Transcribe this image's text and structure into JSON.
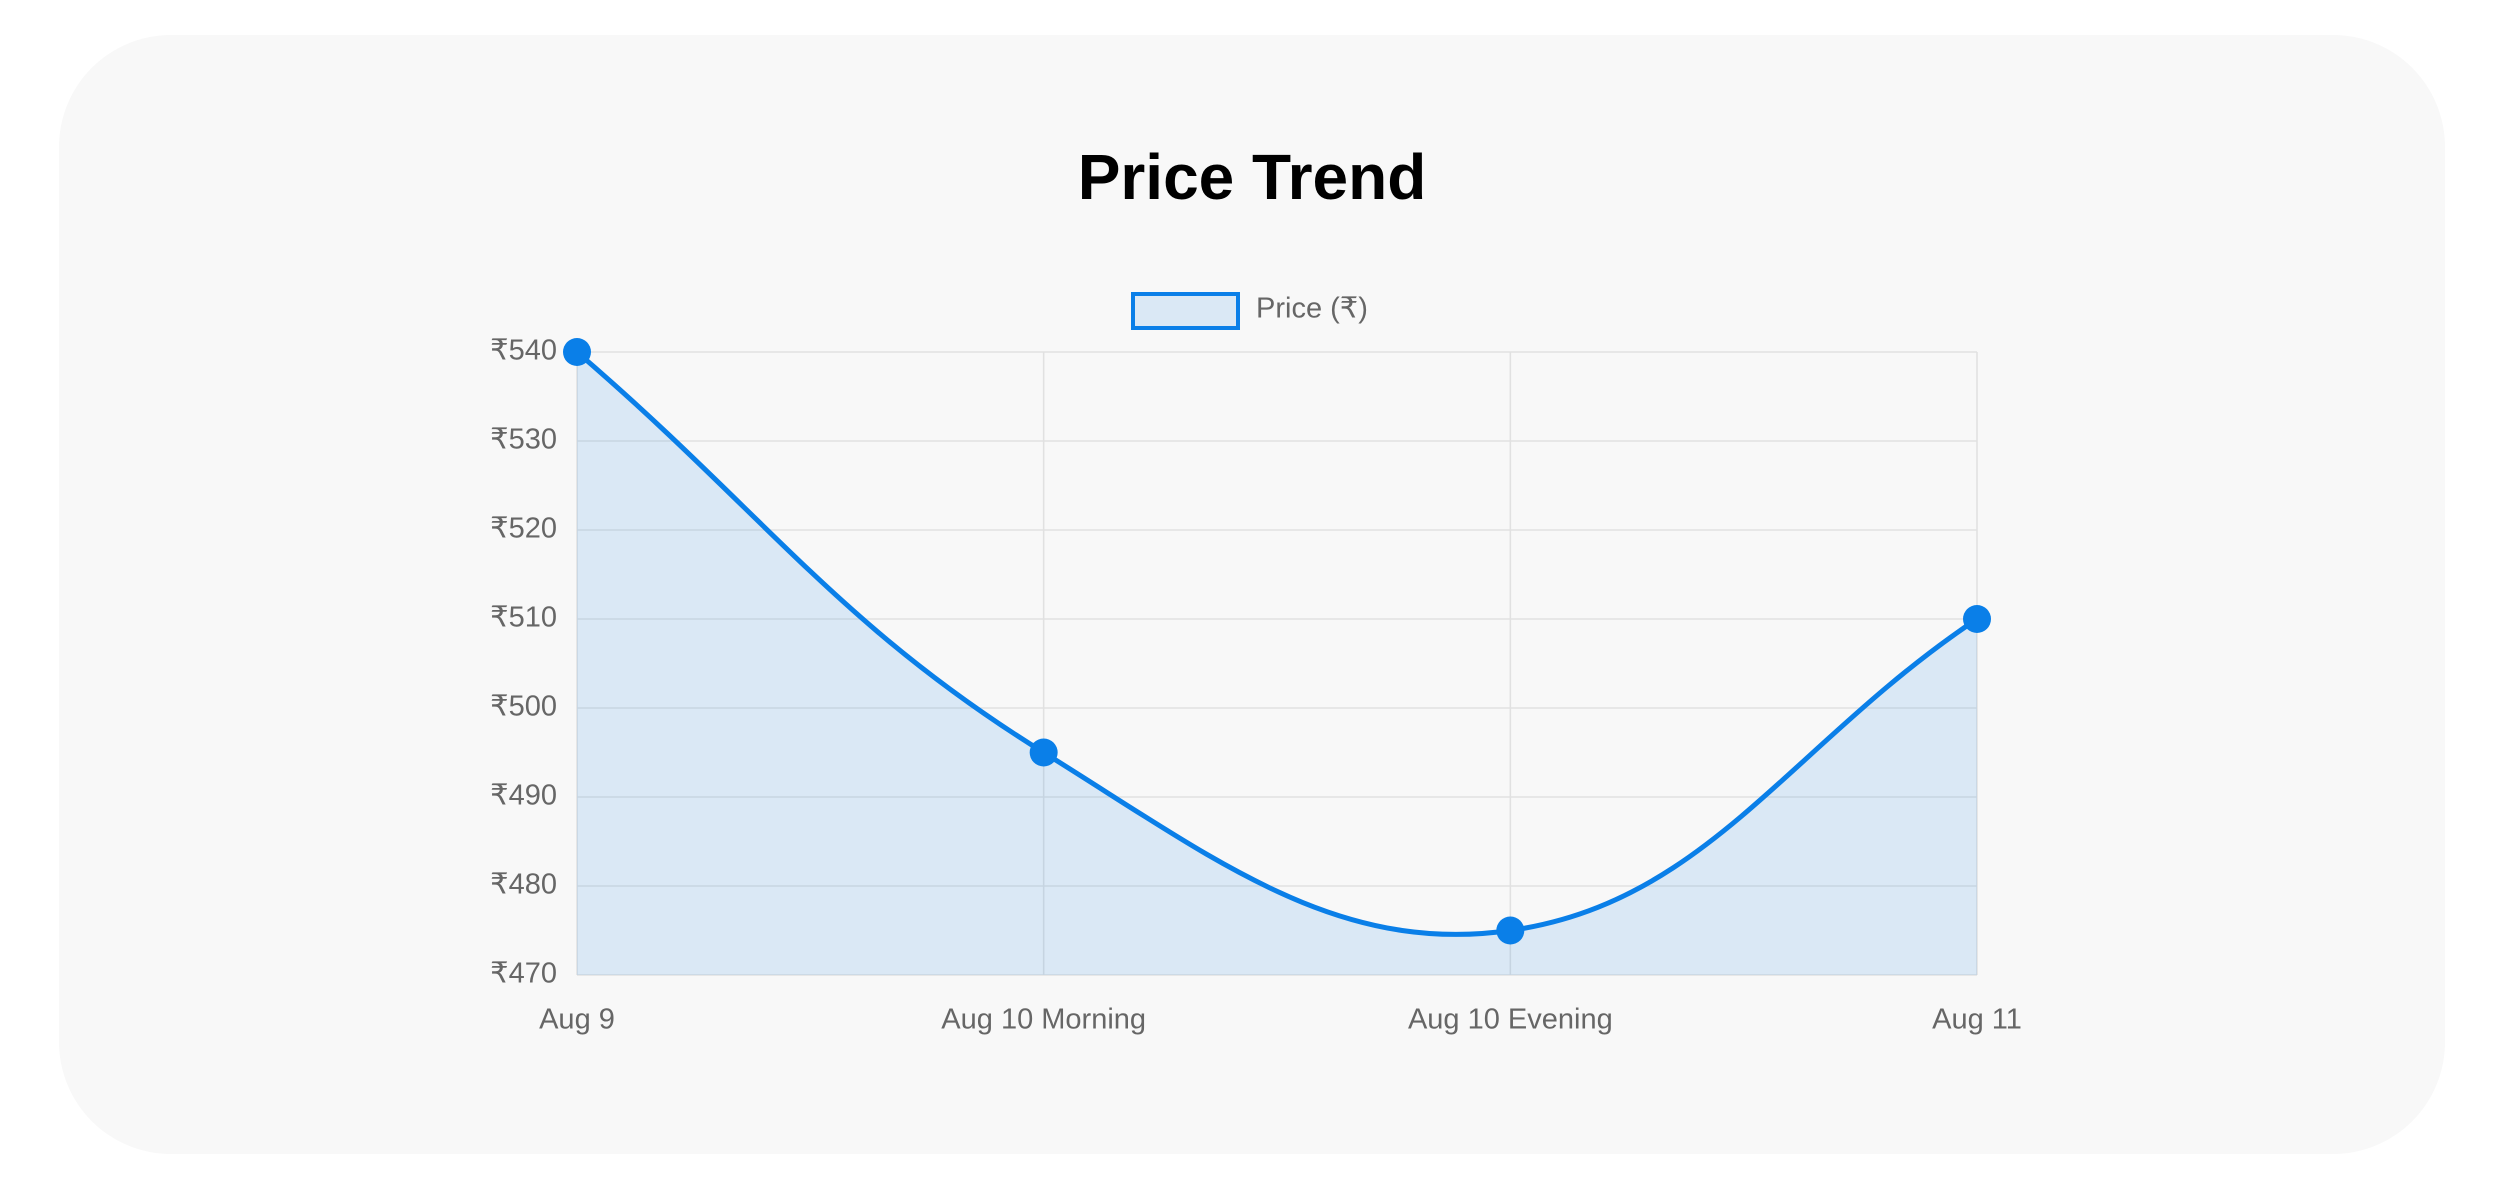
{
  "chart_data": {
    "type": "line",
    "title": "Price Trend",
    "categories": [
      "Aug 9",
      "Aug 10 Morning",
      "Aug 10 Evening",
      "Aug 11"
    ],
    "series": [
      {
        "name": "Price (₹)",
        "color": "#0a7fe8",
        "values": [
          540,
          495,
          475,
          510
        ]
      }
    ],
    "ylim": [
      470,
      540
    ],
    "yticks": [
      {
        "value": 470,
        "label": "₹470"
      },
      {
        "value": 480,
        "label": "₹480"
      },
      {
        "value": 490,
        "label": "₹490"
      },
      {
        "value": 500,
        "label": "₹500"
      },
      {
        "value": 510,
        "label": "₹510"
      },
      {
        "value": 520,
        "label": "₹520"
      },
      {
        "value": 530,
        "label": "₹530"
      },
      {
        "value": 540,
        "label": "₹540"
      }
    ],
    "grid": true,
    "legend": "top"
  }
}
